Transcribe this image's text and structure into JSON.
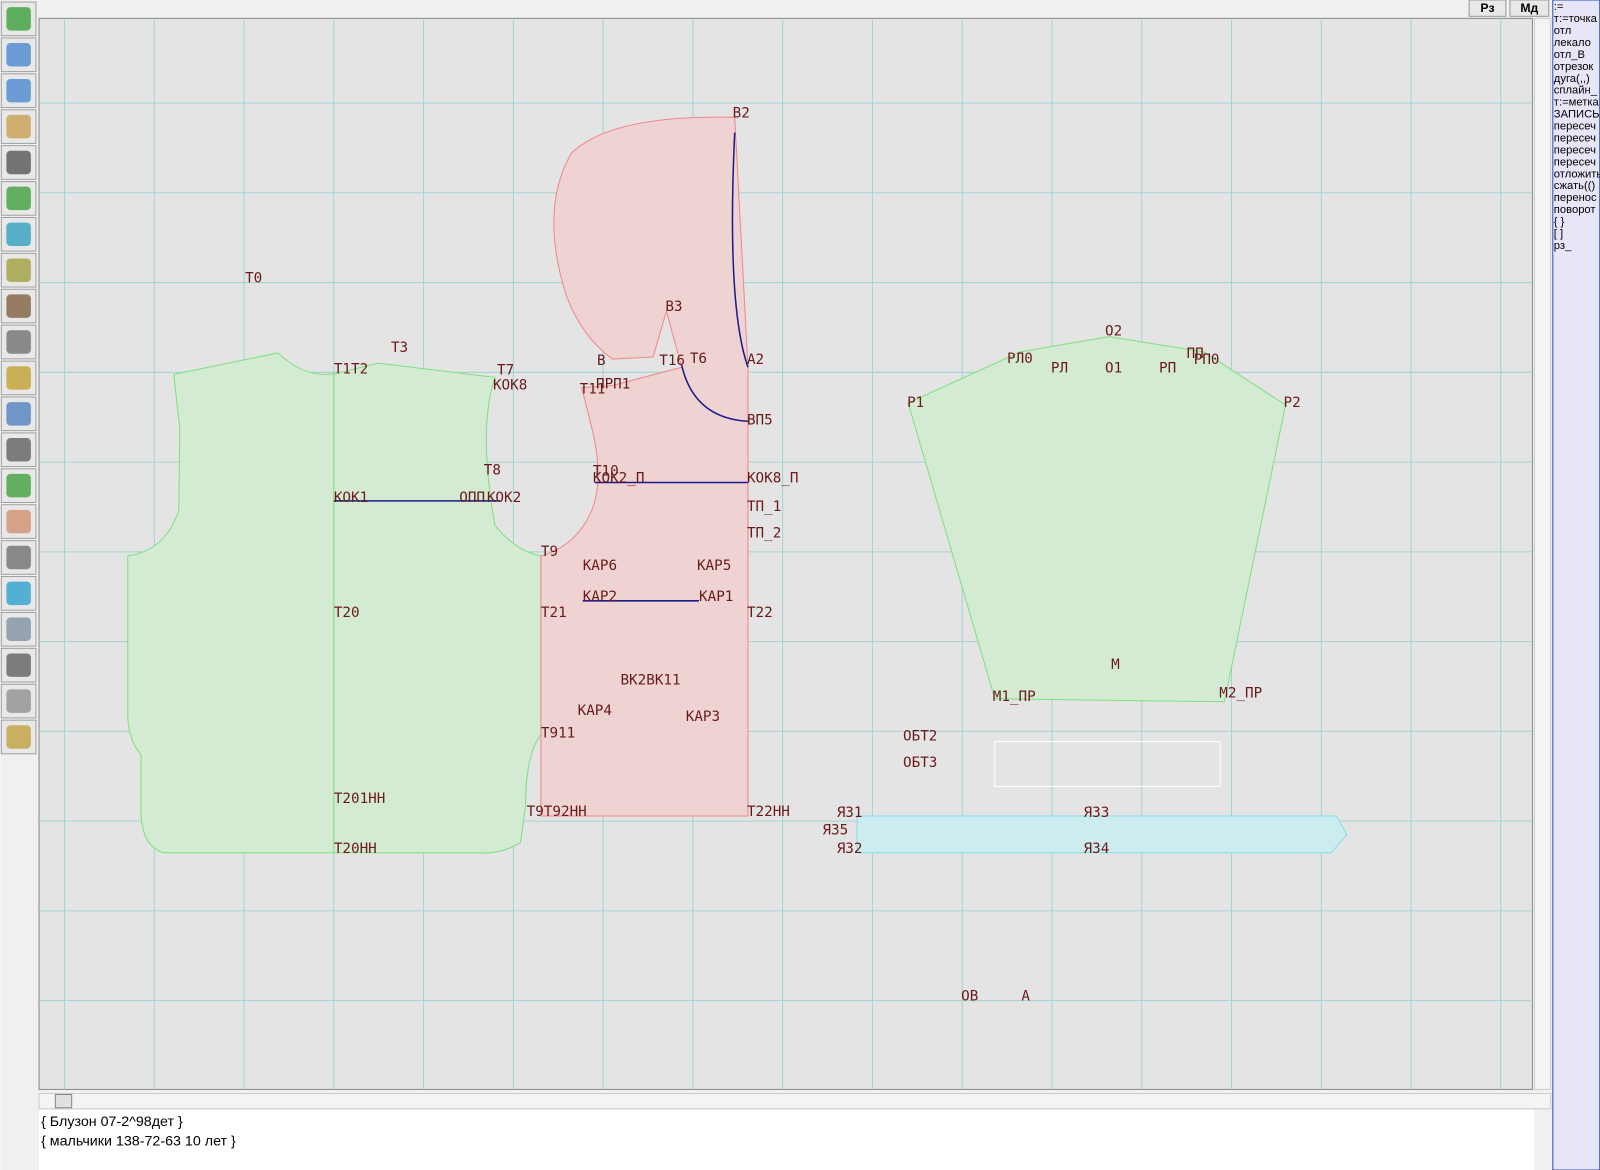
{
  "header": {
    "buttons": [
      "Рз",
      "Мд"
    ]
  },
  "commands": [
    ":=",
    "т:=точка",
    "отл",
    "лекало",
    "отл_В",
    "отрезок",
    "дуга(,,)",
    "сплайн_",
    "т:=метка",
    "ЗАПИСЬ",
    "пересеч",
    "пересеч",
    "пересеч",
    "пересеч",
    "отложить",
    "сжать(()",
    "перенос",
    "поворот",
    "{ }",
    "[ ]",
    "рз_"
  ],
  "points": [
    "Т0",
    "Т1Т2",
    "Т3",
    "Т7",
    "КОК8",
    "Т8",
    "КОК1",
    "ОПП",
    "КОК2",
    "Т9",
    "Т20",
    "Т21",
    "Т911",
    "Т201НН",
    "Т9Т92НН",
    "Т20НН",
    "В2",
    "В3",
    "В",
    "Т16",
    "Т6",
    "А2",
    "ПРП1",
    "Т11",
    "ВП5",
    "Т10",
    "КОК2_П",
    "КОК8_П",
    "ТП_1",
    "ТП_2",
    "КАР6",
    "КАР5",
    "КАР2",
    "КАР1",
    "Т22",
    "ВК2ВК11",
    "КАР4",
    "КАР3",
    "Т22НН",
    "Я31",
    "Я35",
    "Я32",
    "Я33",
    "Я34",
    "ОБТ2",
    "ОБТ3",
    "ОВ",
    "А",
    "О2",
    "РЛ0",
    "ПП",
    "РП0",
    "РЛ",
    "О1",
    "РП",
    "Р1",
    "Р2",
    "М",
    "М1_ПР",
    "М2_ПР"
  ],
  "footer": {
    "lines": [
      "{ Блузон 07-2^98дет }",
      "{ мальчики 138-72-63  10 лет }"
    ]
  }
}
